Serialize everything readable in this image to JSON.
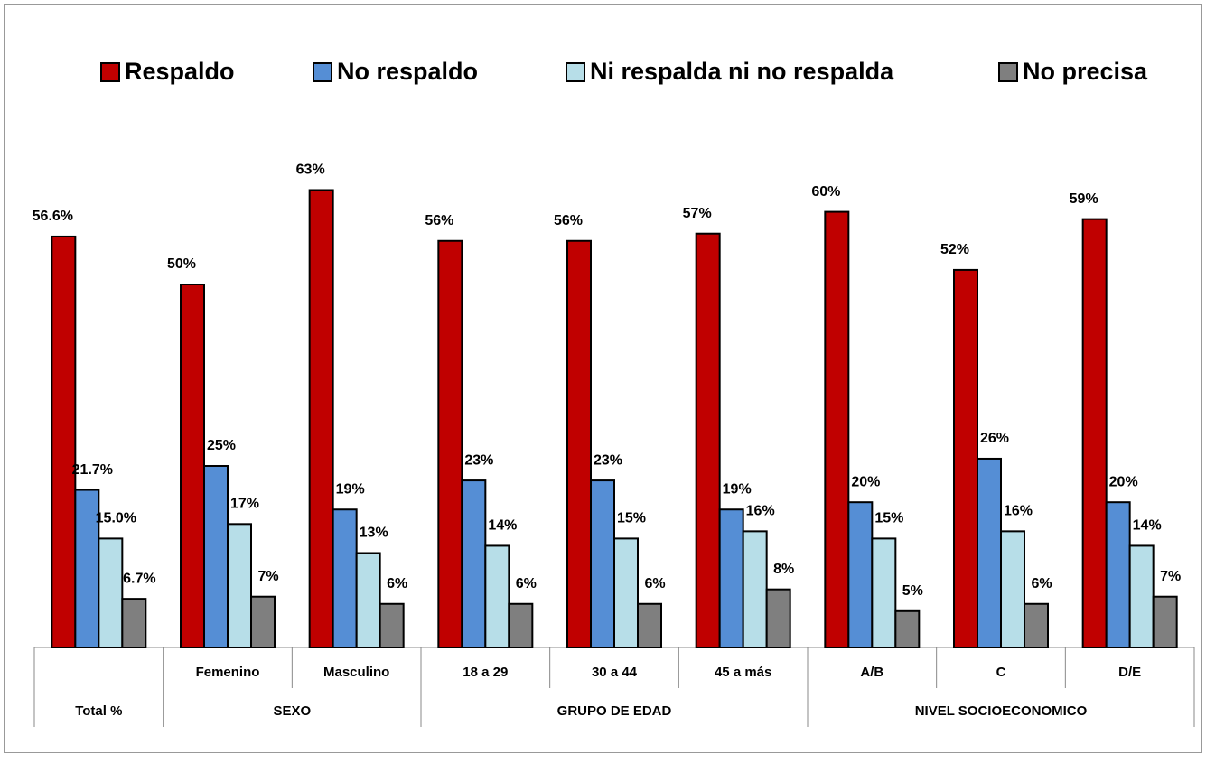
{
  "chart_data": {
    "type": "bar",
    "categories": [
      null,
      "Femenino",
      "Masculino",
      "18 a 29",
      "30 a 44",
      "45 a más",
      "A/B",
      "C",
      "D/E"
    ],
    "groups": [
      {
        "label": "Total %",
        "count": 1
      },
      {
        "label": "SEXO",
        "count": 2
      },
      {
        "label": "GRUPO DE EDAD",
        "count": 3
      },
      {
        "label": "NIVEL SOCIOECONOMICO",
        "count": 3
      }
    ],
    "series": [
      {
        "name": "Respaldo",
        "color": "#c00000",
        "values": [
          56.6,
          50,
          63,
          56,
          56,
          57,
          60,
          52,
          59
        ],
        "value_labels": [
          "56.6%",
          "50%",
          "63%",
          "56%",
          "56%",
          "57%",
          "60%",
          "52%",
          "59%"
        ]
      },
      {
        "name": "No respaldo",
        "color": "#558ed5",
        "values": [
          21.7,
          25,
          19,
          23,
          23,
          19,
          20,
          26,
          20
        ],
        "value_labels": [
          "21.7%",
          "25%",
          "19%",
          "23%",
          "23%",
          "19%",
          "20%",
          "26%",
          "20%"
        ]
      },
      {
        "name": "Ni respalda ni no respalda",
        "color": "#b7dee8",
        "values": [
          15.0,
          17,
          13,
          14,
          15,
          16,
          15,
          16,
          14
        ],
        "value_labels": [
          "15.0%",
          "17%",
          "13%",
          "14%",
          "15%",
          "16%",
          "15%",
          "16%",
          "14%"
        ]
      },
      {
        "name": "No precisa",
        "color": "#7f7f7f",
        "values": [
          6.7,
          7,
          6,
          6,
          6,
          8,
          5,
          6,
          7
        ],
        "value_labels": [
          "6.7%",
          "7%",
          "6%",
          "6%",
          "6%",
          "8%",
          "5%",
          "6%",
          "7%"
        ]
      }
    ],
    "ylim": [
      0,
      70
    ],
    "legend": "top"
  }
}
